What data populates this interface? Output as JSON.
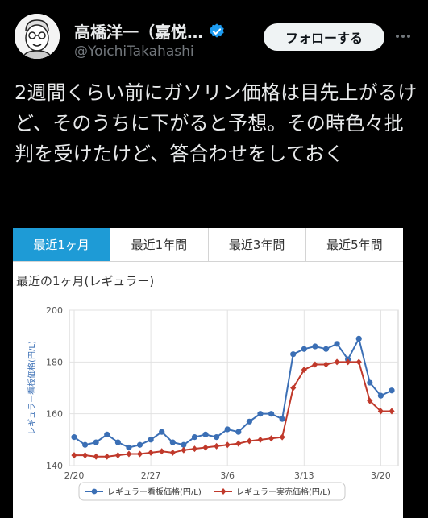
{
  "profile": {
    "name": "高橋洋一（嘉悦…",
    "handle": "@YoichiTakahashi",
    "avatar_icon": "avatar-illustration",
    "verified_icon": "verified-badge-icon",
    "verified_color": "#1d9bf0"
  },
  "actions": {
    "follow_label": "フォローする",
    "more_icon": "more-options-icon"
  },
  "tweet": {
    "text": "2週間くらい前にガソリン価格は目先上がるけど、そのうちに下がると予想。その時色々批判を受けたけど、答合わせをしておく"
  },
  "card": {
    "tabs": [
      {
        "label": "最近1ヶ月",
        "active": true
      },
      {
        "label": "最近1年間",
        "active": false
      },
      {
        "label": "最近3年間",
        "active": false
      },
      {
        "label": "最近5年間",
        "active": false
      }
    ],
    "accent": "#1e9bd6"
  },
  "chart_data": {
    "type": "line",
    "title": "最近の1ヶ月(レギュラー)",
    "ylabel": "レギュラー看板価格(円/L)",
    "ylim": [
      140,
      200
    ],
    "yticks": [
      140,
      160,
      180,
      200
    ],
    "x_tick_labels": [
      {
        "index": 0,
        "label": "2/20"
      },
      {
        "index": 7,
        "label": "2/27"
      },
      {
        "index": 14,
        "label": "3/6"
      },
      {
        "index": 21,
        "label": "3/13"
      },
      {
        "index": 28,
        "label": "3/20"
      }
    ],
    "grid": true,
    "legend_position": "bottom",
    "series": [
      {
        "name": "レギュラー看板価格(円/L)",
        "color": "#3b6fb5",
        "marker": "circle",
        "values": [
          151,
          148,
          149,
          152,
          149,
          147,
          148,
          150,
          153,
          149,
          148,
          151,
          152,
          151,
          154,
          153,
          157,
          160,
          160,
          158,
          183,
          185,
          186,
          185,
          187,
          181,
          189,
          172,
          167,
          169
        ]
      },
      {
        "name": "レギュラー実売価格(円/L)",
        "color": "#c0392b",
        "marker": "diamond",
        "values": [
          144,
          144,
          143.5,
          143.5,
          144,
          144.5,
          144.5,
          145,
          145.5,
          145,
          146,
          146.5,
          147,
          147.5,
          148,
          148.5,
          149.5,
          150,
          150.5,
          151,
          170,
          177,
          179,
          179,
          180,
          180,
          180,
          165,
          161,
          161
        ]
      }
    ]
  }
}
